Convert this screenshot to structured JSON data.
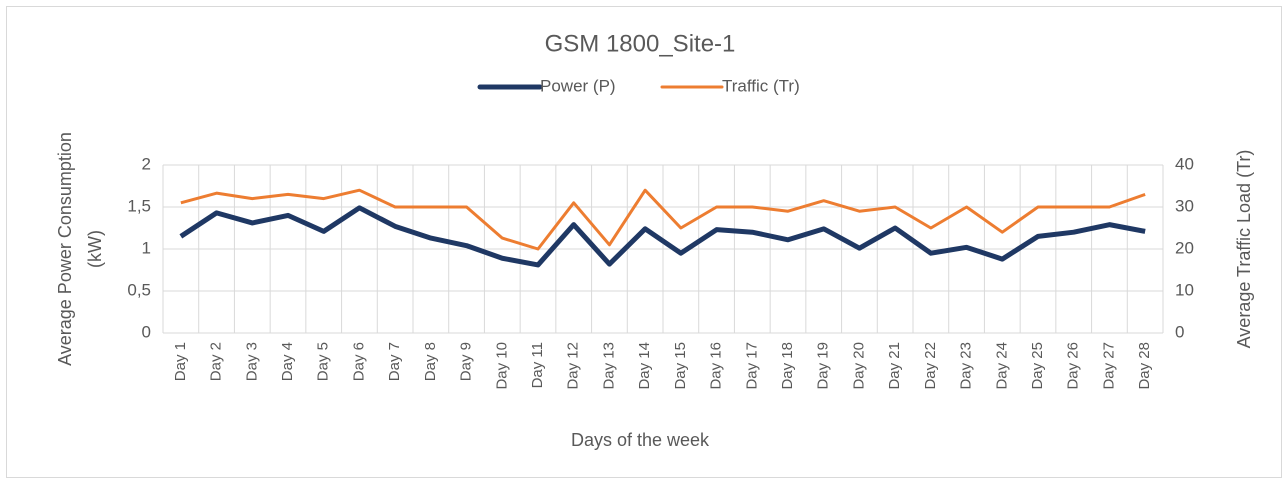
{
  "chart_data": {
    "type": "line",
    "title": "GSM 1800_Site-1",
    "x_label": "Days of the week",
    "y_label_lines": [
      "Average Power Consumption",
      "(kW)"
    ],
    "y2_label": "Average Traffic Load (Tr)",
    "categories": [
      "Day 1",
      "Day 2",
      "Day 3",
      "Day 4",
      "Day 5",
      "Day 6",
      "Day 7",
      "Day 8",
      "Day 9",
      "Day 10",
      "Day 11",
      "Day 12",
      "Day 13",
      "Day 14",
      "Day 15",
      "Day 16",
      "Day 17",
      "Day 18",
      "Day 19",
      "Day 20",
      "Day 21",
      "Day 22",
      "Day 23",
      "Day 24",
      "Day 25",
      "Day 26",
      "Day 27",
      "Day 28"
    ],
    "series": [
      {
        "name": "Power (P)",
        "color": "#1f3864",
        "axis": "y",
        "values": [
          1.15,
          1.43,
          1.31,
          1.4,
          1.21,
          1.49,
          1.27,
          1.13,
          1.04,
          0.89,
          0.81,
          1.29,
          0.82,
          1.24,
          0.95,
          1.23,
          1.2,
          1.11,
          1.24,
          1.01,
          1.25,
          0.95,
          1.02,
          0.88,
          1.15,
          1.2,
          1.29,
          1.21
        ]
      },
      {
        "name": "Traffic (Tr)",
        "color": "#ed7d31",
        "axis": "y2",
        "values": [
          31,
          33.3,
          32,
          33,
          32,
          34,
          30,
          30,
          30,
          22.6,
          20,
          31,
          21,
          34,
          25,
          30,
          30,
          29,
          31.5,
          29,
          30,
          25,
          30,
          24,
          30,
          30,
          30,
          33
        ]
      }
    ],
    "ylim": [
      0,
      2
    ],
    "yticks": [
      0,
      {
        "value": 0.5,
        "label": "0,5"
      },
      1,
      {
        "value": 1.5,
        "label": "1,5"
      },
      2
    ],
    "y2lim": [
      0,
      40
    ],
    "y2ticks": [
      0,
      10,
      20,
      30,
      40
    ],
    "grid": true,
    "legend": "top"
  }
}
